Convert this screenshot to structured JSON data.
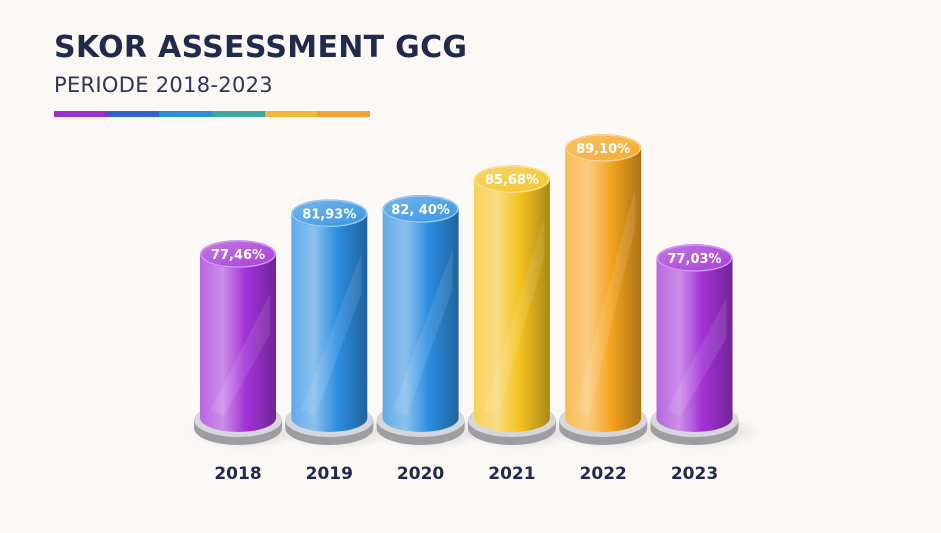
{
  "header": {
    "title": "SKOR ASSESSMENT GCG",
    "subtitle": "PERIODE 2018-2023"
  },
  "stripe_colors": [
    "#9b2fc9",
    "#2e63c9",
    "#2a8fd6",
    "#3fa6a0",
    "#f0b93a",
    "#f2a23a"
  ],
  "chart_data": {
    "type": "bar",
    "title": "SKOR ASSESSMENT GCG",
    "subtitle": "PERIODE 2018-2023",
    "categories": [
      "2018",
      "2019",
      "2020",
      "2021",
      "2022",
      "2023"
    ],
    "values": [
      77.46,
      81.93,
      82.4,
      85.68,
      89.1,
      77.03
    ],
    "value_labels": [
      "77,46%",
      "81,93%",
      "82, 40%",
      "85,68%",
      "89,10%",
      "77,03%"
    ],
    "colors": [
      "#a233d6",
      "#2d8ee0",
      "#2d8ee0",
      "#f4c21f",
      "#f5a41e",
      "#a233d6"
    ],
    "unit": "%",
    "xlabel": "",
    "ylabel": "",
    "grid": false
  }
}
